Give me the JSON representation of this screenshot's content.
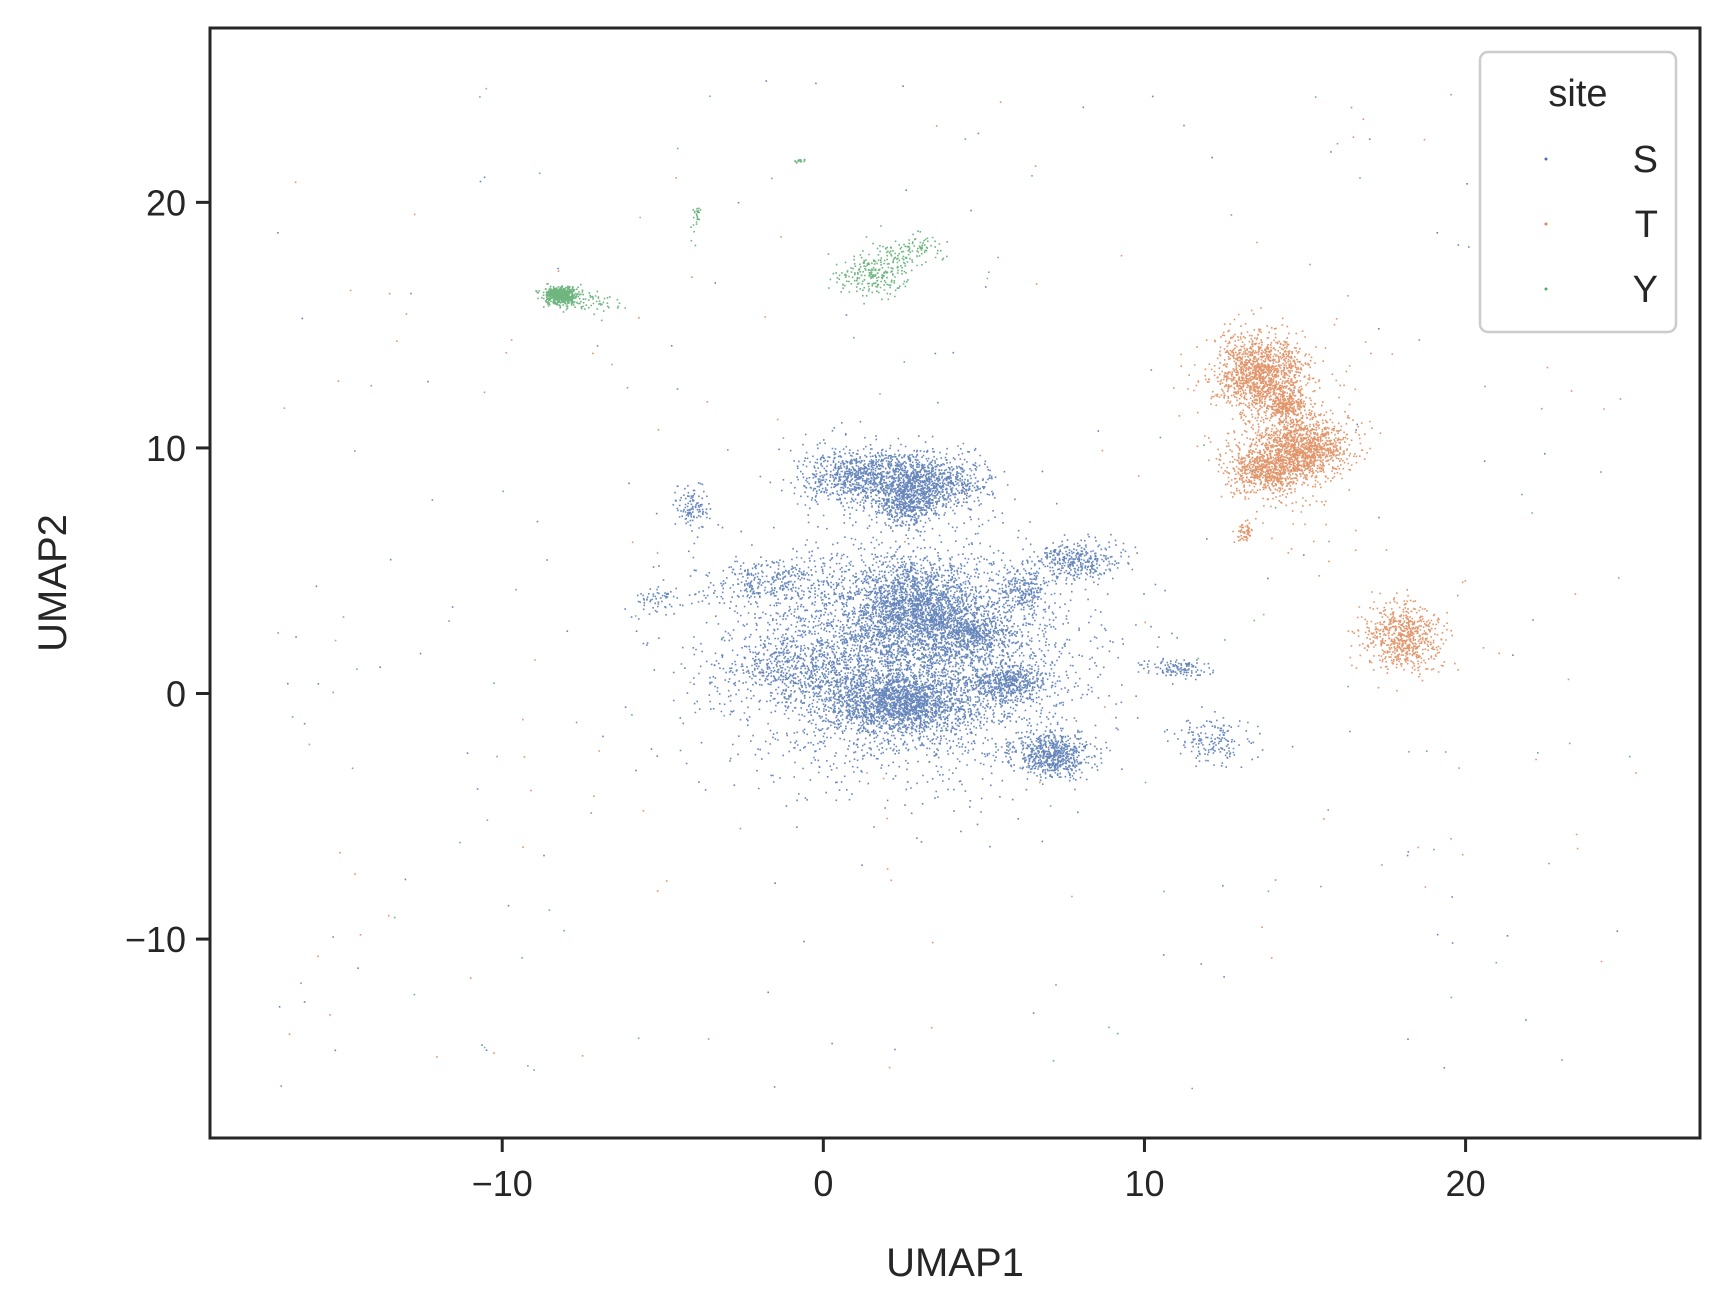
{
  "chart_data": {
    "type": "scatter",
    "title": "",
    "xlabel": "UMAP1",
    "ylabel": "UMAP2",
    "xlim": [
      -19.1,
      27.3
    ],
    "ylim": [
      -18.1,
      27.1
    ],
    "xticks": [
      -10,
      0,
      10,
      20
    ],
    "yticks": [
      -10,
      0,
      10,
      20
    ],
    "xtick_labels": [
      "−10",
      "0",
      "10",
      "20"
    ],
    "ytick_labels": [
      "−10",
      "0",
      "10",
      "20"
    ],
    "grid": false,
    "legend": {
      "title": "site",
      "placement": "top-right",
      "entries": [
        "S",
        "T",
        "Y"
      ]
    },
    "series": [
      {
        "name": "S",
        "color": "#4c72b0",
        "clusters": [
          {
            "cx": 2.5,
            "cy": 1.5,
            "sx": 2.6,
            "sy": 2.2,
            "n": 4200
          },
          {
            "cx": 2.3,
            "cy": -0.4,
            "sx": 1.2,
            "sy": 0.6,
            "n": 1600
          },
          {
            "cx": 1.6,
            "cy": 8.8,
            "sx": 1.1,
            "sy": 0.6,
            "n": 1200
          },
          {
            "cx": 3.6,
            "cy": 8.6,
            "sx": 0.8,
            "sy": 0.5,
            "n": 600
          },
          {
            "cx": 2.6,
            "cy": 7.6,
            "sx": 0.5,
            "sy": 0.4,
            "n": 400
          },
          {
            "cx": 2.8,
            "cy": 3.5,
            "sx": 1.0,
            "sy": 0.9,
            "n": 1500
          },
          {
            "cx": 4.6,
            "cy": 2.5,
            "sx": 0.6,
            "sy": 0.5,
            "n": 500
          },
          {
            "cx": 5.8,
            "cy": 0.4,
            "sx": 0.6,
            "sy": 0.4,
            "n": 450
          },
          {
            "cx": 7.1,
            "cy": -2.5,
            "sx": 0.6,
            "sy": 0.45,
            "n": 650
          },
          {
            "cx": 7.8,
            "cy": 5.4,
            "sx": 0.7,
            "sy": 0.4,
            "n": 350
          },
          {
            "cx": 6.2,
            "cy": 4.2,
            "sx": 0.4,
            "sy": 0.4,
            "n": 200
          },
          {
            "cx": -1.5,
            "cy": 4.5,
            "sx": 1.0,
            "sy": 0.5,
            "n": 300
          },
          {
            "cx": -1.0,
            "cy": 1.0,
            "sx": 1.2,
            "sy": 0.6,
            "n": 350
          },
          {
            "cx": -4.1,
            "cy": 7.5,
            "sx": 0.3,
            "sy": 0.5,
            "n": 120
          },
          {
            "cx": 11.0,
            "cy": 1.0,
            "sx": 0.5,
            "sy": 0.2,
            "n": 120
          },
          {
            "cx": 12.2,
            "cy": -2.0,
            "sx": 0.6,
            "sy": 0.5,
            "n": 160
          },
          {
            "cx": -5.2,
            "cy": 3.8,
            "sx": 0.4,
            "sy": 0.3,
            "n": 60
          }
        ]
      },
      {
        "name": "T",
        "color": "#dd8452",
        "clusters": [
          {
            "cx": 13.6,
            "cy": 13.0,
            "sx": 0.7,
            "sy": 0.8,
            "n": 1300
          },
          {
            "cx": 14.9,
            "cy": 10.0,
            "sx": 0.7,
            "sy": 0.6,
            "n": 1100
          },
          {
            "cx": 13.8,
            "cy": 9.1,
            "sx": 0.6,
            "sy": 0.45,
            "n": 700
          },
          {
            "cx": 14.4,
            "cy": 11.7,
            "sx": 0.3,
            "sy": 0.3,
            "n": 250
          },
          {
            "cx": 18.0,
            "cy": 2.3,
            "sx": 0.6,
            "sy": 0.7,
            "n": 650
          },
          {
            "cx": 13.1,
            "cy": 6.6,
            "sx": 0.12,
            "sy": 0.2,
            "n": 60
          },
          {
            "cx": 14.2,
            "cy": 10.5,
            "sx": 1.2,
            "sy": 2.0,
            "n": 300
          }
        ]
      },
      {
        "name": "Y",
        "color": "#55a868",
        "clusters": [
          {
            "cx": -8.2,
            "cy": 16.2,
            "sx": 0.25,
            "sy": 0.18,
            "n": 600
          },
          {
            "cx": -7.3,
            "cy": 15.9,
            "sx": 0.5,
            "sy": 0.2,
            "n": 60
          },
          {
            "cx": 1.5,
            "cy": 17.0,
            "sx": 0.5,
            "sy": 0.4,
            "n": 220
          },
          {
            "cx": 2.6,
            "cy": 18.0,
            "sx": 0.6,
            "sy": 0.35,
            "n": 120
          },
          {
            "cx": -4.0,
            "cy": 19.2,
            "sx": 0.1,
            "sy": 0.4,
            "n": 25
          },
          {
            "cx": -0.8,
            "cy": 21.7,
            "sx": 0.1,
            "sy": 0.05,
            "n": 15
          }
        ]
      }
    ]
  }
}
